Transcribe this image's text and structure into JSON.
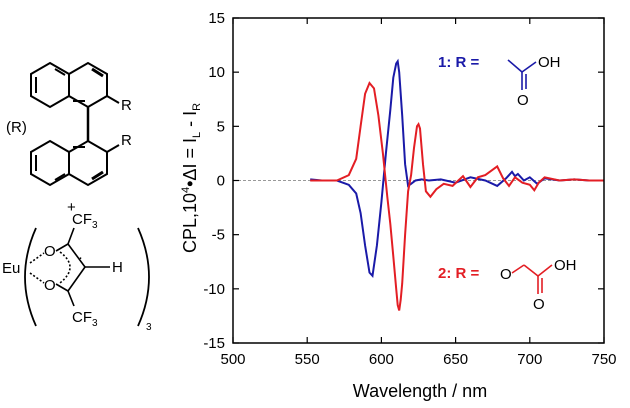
{
  "chart_data": {
    "type": "line",
    "title": "",
    "xlabel": "Wavelength / nm",
    "ylabel": "CPL,10⁴•ΔI = IL - IR",
    "ylabel_parts": {
      "lead": "CPL,10",
      "exp": "4",
      "mid": "•ΔI = I",
      "sub1": "L",
      "dash": " - I",
      "sub2": "R"
    },
    "xlim": [
      500,
      750
    ],
    "ylim": [
      -15,
      15
    ],
    "x_ticks": [
      "500",
      "550",
      "600",
      "650",
      "700",
      "750"
    ],
    "y_ticks": [
      "15",
      "10",
      "5",
      "0",
      "-5",
      "-10",
      "-15"
    ],
    "x_tick_values": [
      500,
      550,
      600,
      650,
      700,
      750
    ],
    "y_tick_values": [
      15,
      10,
      5,
      0,
      -5,
      -10,
      -15
    ],
    "baseline": 0,
    "series": [
      {
        "name": "1: R =",
        "color": "#1a1aa8",
        "x": [
          552,
          560,
          570,
          578,
          583,
          586,
          589,
          592,
          594,
          597,
          600,
          603,
          606,
          608,
          610,
          611,
          612,
          614,
          616,
          618,
          620,
          623,
          627,
          632,
          640,
          650,
          660,
          670,
          678,
          684,
          688,
          690,
          692,
          696,
          700,
          705,
          710,
          720,
          730,
          740,
          750
        ],
        "values": [
          0.1,
          0.0,
          0.0,
          -0.4,
          -1.2,
          -3.0,
          -6.0,
          -8.5,
          -8.8,
          -6.0,
          -2.0,
          2.5,
          6.5,
          9.5,
          10.8,
          11.0,
          10.0,
          6.0,
          1.5,
          -0.5,
          -0.3,
          0.0,
          0.1,
          0.0,
          0.1,
          -0.2,
          0.3,
          0.0,
          -0.5,
          0.2,
          0.8,
          0.4,
          0.6,
          0.0,
          0.3,
          -0.3,
          0.2,
          0.0,
          0.1,
          0.0,
          0.0
        ]
      },
      {
        "name": "2: R =",
        "color": "#e31e24",
        "x": [
          552,
          560,
          570,
          578,
          583,
          586,
          589,
          592,
          595,
          598,
          601,
          604,
          606,
          608,
          610,
          611,
          612,
          613,
          614,
          616,
          618,
          620,
          622,
          624,
          625,
          626,
          628,
          630,
          633,
          637,
          642,
          648,
          655,
          660,
          665,
          670,
          675,
          678,
          682,
          686,
          690,
          695,
          700,
          703,
          706,
          710,
          720,
          730,
          740,
          750
        ],
        "values": [
          0.0,
          0.0,
          0.0,
          0.5,
          2.0,
          5.0,
          8.0,
          9.0,
          8.5,
          6.0,
          2.5,
          -1.5,
          -4.0,
          -7.0,
          -10.0,
          -11.5,
          -12.0,
          -11.0,
          -9.5,
          -5.0,
          -1.0,
          0.5,
          3.0,
          5.0,
          5.2,
          4.8,
          1.5,
          -1.0,
          -1.5,
          -0.8,
          -0.3,
          -0.5,
          0.4,
          -0.6,
          0.3,
          0.5,
          1.0,
          1.3,
          0.2,
          -0.5,
          0.3,
          -0.2,
          -0.4,
          -0.9,
          -0.2,
          0.3,
          0.0,
          0.1,
          0.0,
          0.0
        ]
      }
    ]
  },
  "legend": [
    {
      "label": "1: R =",
      "color": "#1a1aa8",
      "group": "OH"
    },
    {
      "label": "2: R =",
      "color": "#e31e24",
      "group": "OH"
    }
  ],
  "structure": {
    "binaphthyl_label": "(R)",
    "r_upper": "R",
    "r_lower": "R",
    "plus": "+",
    "eu": "Eu",
    "o_upper": "O",
    "o_lower": "O",
    "cf3_upper": "CF",
    "cf3_lower": "CF",
    "cf3_sub": "3",
    "h": "H",
    "dot": "·",
    "subscript_count": "3"
  }
}
